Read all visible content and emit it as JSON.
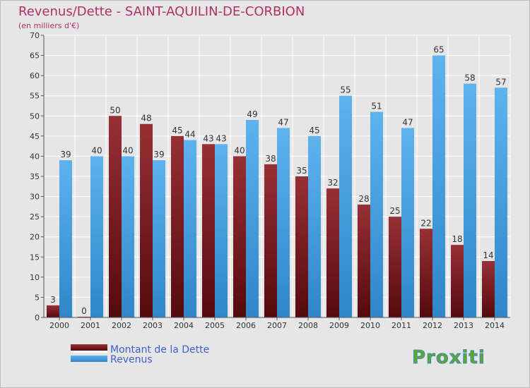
{
  "chart_data": {
    "type": "bar",
    "title": "Revenus/Dette - SAINT-AQUILIN-DE-CORBION",
    "subtitle": "(en milliers d'€)",
    "categories": [
      "2000",
      "2001",
      "2002",
      "2003",
      "2004",
      "2005",
      "2006",
      "2007",
      "2008",
      "2009",
      "2010",
      "2011",
      "2012",
      "2013",
      "2014"
    ],
    "series": [
      {
        "name": "Montant de la Dette",
        "values": [
          3,
          0,
          50,
          48,
          45,
          43,
          40,
          38,
          35,
          32,
          28,
          25,
          22,
          18,
          14
        ],
        "color": "#7a1a1e"
      },
      {
        "name": "Revenus",
        "values": [
          39,
          40,
          40,
          39,
          44,
          43,
          49,
          47,
          45,
          55,
          51,
          47,
          65,
          58,
          57
        ],
        "color": "#4aa3e6"
      }
    ],
    "yticks": [
      0,
      5,
      10,
      15,
      20,
      25,
      30,
      35,
      40,
      45,
      50,
      55,
      60,
      65,
      70
    ],
    "ylim": [
      0,
      70
    ],
    "grid": true,
    "legend": "bottom-left",
    "colors": {
      "title": "#b0306a",
      "legend_text": "#4060d0",
      "grid": "#ffffff",
      "plot_bg": "#e6e6e6"
    }
  },
  "logo": {
    "text": "Proxiti"
  }
}
